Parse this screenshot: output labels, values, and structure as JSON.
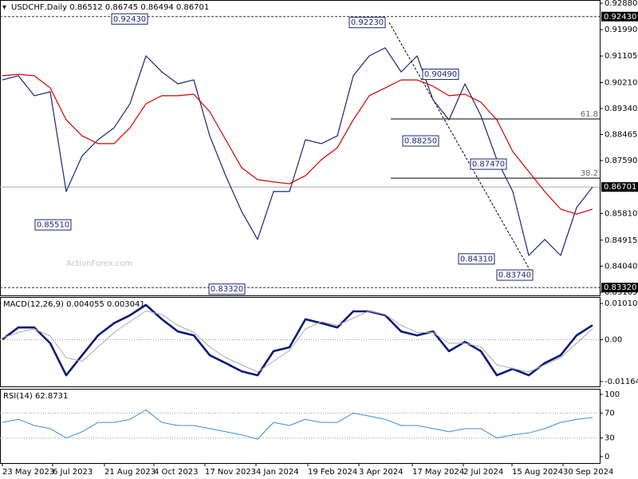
{
  "chart_data": [
    {
      "type": "line",
      "title": "USDCHF,Daily  0.86512 0.86745 0.86494 0.86701",
      "watermark": "ActionForex.com",
      "xlim": [
        0,
        37
      ],
      "xticks": [
        {
          "value": 0,
          "label": "23 May 2023"
        },
        {
          "value": 3.15,
          "label": "6 Jul 2023"
        },
        {
          "value": 6.4,
          "label": "21 Aug 2023"
        },
        {
          "value": 9.5,
          "label": "4 Oct 2023"
        },
        {
          "value": 12.7,
          "label": "17 Nov 2023"
        },
        {
          "value": 15.9,
          "label": "4 Jan 2024"
        },
        {
          "value": 19.15,
          "label": "19 Feb 2024"
        },
        {
          "value": 22.35,
          "label": "3 Apr 2024"
        },
        {
          "value": 25.7,
          "label": "17 May 2024"
        },
        {
          "value": 28.9,
          "label": "2 Jul 2024"
        },
        {
          "value": 31.95,
          "label": "15 Aug 2024"
        },
        {
          "value": 35.15,
          "label": "30 Sep 2024"
        }
      ],
      "ylim": [
        0.83165,
        0.9288
      ],
      "yticks": [
        {
          "value": 0.9288,
          "label": "0.92880"
        },
        {
          "value": 0.9199,
          "label": "0.91990"
        },
        0.91105,
        {
          "value": 0.9021,
          "label": "0.90210"
        },
        {
          "value": 0.8934,
          "label": "0.89340"
        },
        0.88465,
        {
          "value": 0.8759,
          "label": "0.87590"
        },
        {
          "value": 0.8581,
          "label": "0.85810"
        },
        0.84915,
        {
          "value": 0.8404,
          "label": "0.84040"
        },
        0.83165
      ],
      "series": [
        {
          "color": "#1c2670",
          "values": [
            0.903,
            0.9044,
            0.8977,
            0.899,
            0.8655,
            0.8775,
            0.8829,
            0.8869,
            0.895,
            0.9111,
            0.9057,
            0.9017,
            0.903,
            0.8842,
            0.8708,
            0.8588,
            0.8494,
            0.8655,
            0.8655,
            0.8829,
            0.8816,
            0.8842,
            0.9044,
            0.9111,
            0.9138,
            0.9057,
            0.9111,
            0.8963,
            0.8896,
            0.9017,
            0.891,
            0.8762,
            0.8655,
            0.844,
            0.8494,
            0.844,
            0.8601,
            0.86701
          ]
        },
        {
          "color": "#d40000",
          "values": [
            0.9044,
            0.9049,
            0.9044,
            0.9003,
            0.8896,
            0.8842,
            0.8816,
            0.8816,
            0.8869,
            0.895,
            0.8977,
            0.8977,
            0.8982,
            0.8923,
            0.8829,
            0.8735,
            0.8695,
            0.8687,
            0.8681,
            0.8708,
            0.8762,
            0.8802,
            0.8896,
            0.8977,
            0.9003,
            0.903,
            0.903,
            0.9009,
            0.8977,
            0.8982,
            0.8955,
            0.8896,
            0.8789,
            0.8722,
            0.8655,
            0.8596,
            0.8579,
            0.8596
          ]
        }
      ],
      "levels": [
        {
          "value": 0.9243,
          "label": "0.92430"
        },
        {
          "value": 0.86701,
          "label": "0.86701"
        },
        {
          "value": 0.8332,
          "label": "0.83320"
        }
      ],
      "pivots": [
        {
          "value": 0.9243,
          "label": "0.92430"
        },
        {
          "value": 0.8551,
          "label": "0.85510"
        },
        {
          "value": 0.8332,
          "label": "0.83320"
        },
        {
          "value": 0.9223,
          "label": "0.92230"
        },
        {
          "value": 0.9049,
          "label": "0.90490"
        },
        {
          "value": 0.8825,
          "label": "0.88250"
        },
        {
          "value": 0.8747,
          "label": "0.87470"
        },
        {
          "value": 0.8431,
          "label": "0.84310"
        },
        {
          "value": 0.8374,
          "label": "0.83740"
        }
      ],
      "fibonacci": [
        {
          "value": 0.8899,
          "label": "61.8"
        },
        {
          "value": 0.87,
          "label": "38.2"
        }
      ]
    },
    {
      "type": "line",
      "title": "MACD(12,26,9) 0.004055 0.003041",
      "ylim": [
        -0.013,
        0.0119
      ],
      "yticks": [
        {
          "value": 0.010101,
          "label": "0.010101"
        },
        {
          "value": 0,
          "label": "0.00"
        },
        -0.011645
      ],
      "series": [
        {
          "color": "#0b1a78",
          "values": [
            0.0001,
            0.0034,
            0.0034,
            -0.001,
            -0.0099,
            -0.0043,
            0.0012,
            0.0046,
            0.0068,
            0.0097,
            0.0057,
            0.0023,
            0.0012,
            -0.0043,
            -0.0065,
            -0.0088,
            -0.0099,
            -0.0032,
            -0.0021,
            0.0057,
            0.0046,
            0.0034,
            0.0079,
            0.0079,
            0.0068,
            0.0023,
            0.0012,
            0.0023,
            -0.0032,
            -0.0006,
            -0.0032,
            -0.0099,
            -0.0081,
            -0.0099,
            -0.0065,
            -0.0043,
            0.0012,
            0.004055
          ]
        },
        {
          "color": "#aaaaaa",
          "values": [
            0.0005,
            0.002,
            0.003,
            0.001,
            -0.005,
            -0.006,
            -0.002,
            0.002,
            0.005,
            0.008,
            0.007,
            0.004,
            0.002,
            -0.002,
            -0.005,
            -0.007,
            -0.009,
            -0.006,
            -0.003,
            0.003,
            0.005,
            0.004,
            0.006,
            0.008,
            0.007,
            0.004,
            0.002,
            0.002,
            -0.001,
            -0.001,
            -0.002,
            -0.007,
            -0.008,
            -0.009,
            -0.007,
            -0.005,
            -0.001,
            0.003041
          ]
        }
      ]
    },
    {
      "type": "line",
      "title": "RSI(14) 62.8731",
      "ylim": [
        -10.3,
        109
      ],
      "yticks": [
        100,
        70,
        30,
        0
      ],
      "series": [
        {
          "color": "#3a8fd8",
          "values": [
            55,
            60,
            50,
            45,
            30,
            40,
            55,
            55,
            60,
            75,
            55,
            50,
            50,
            45,
            40,
            35,
            28,
            55,
            50,
            60,
            55,
            55,
            70,
            65,
            60,
            50,
            50,
            45,
            40,
            45,
            45,
            30,
            35,
            38,
            45,
            55,
            60,
            62.8731
          ]
        }
      ]
    }
  ]
}
